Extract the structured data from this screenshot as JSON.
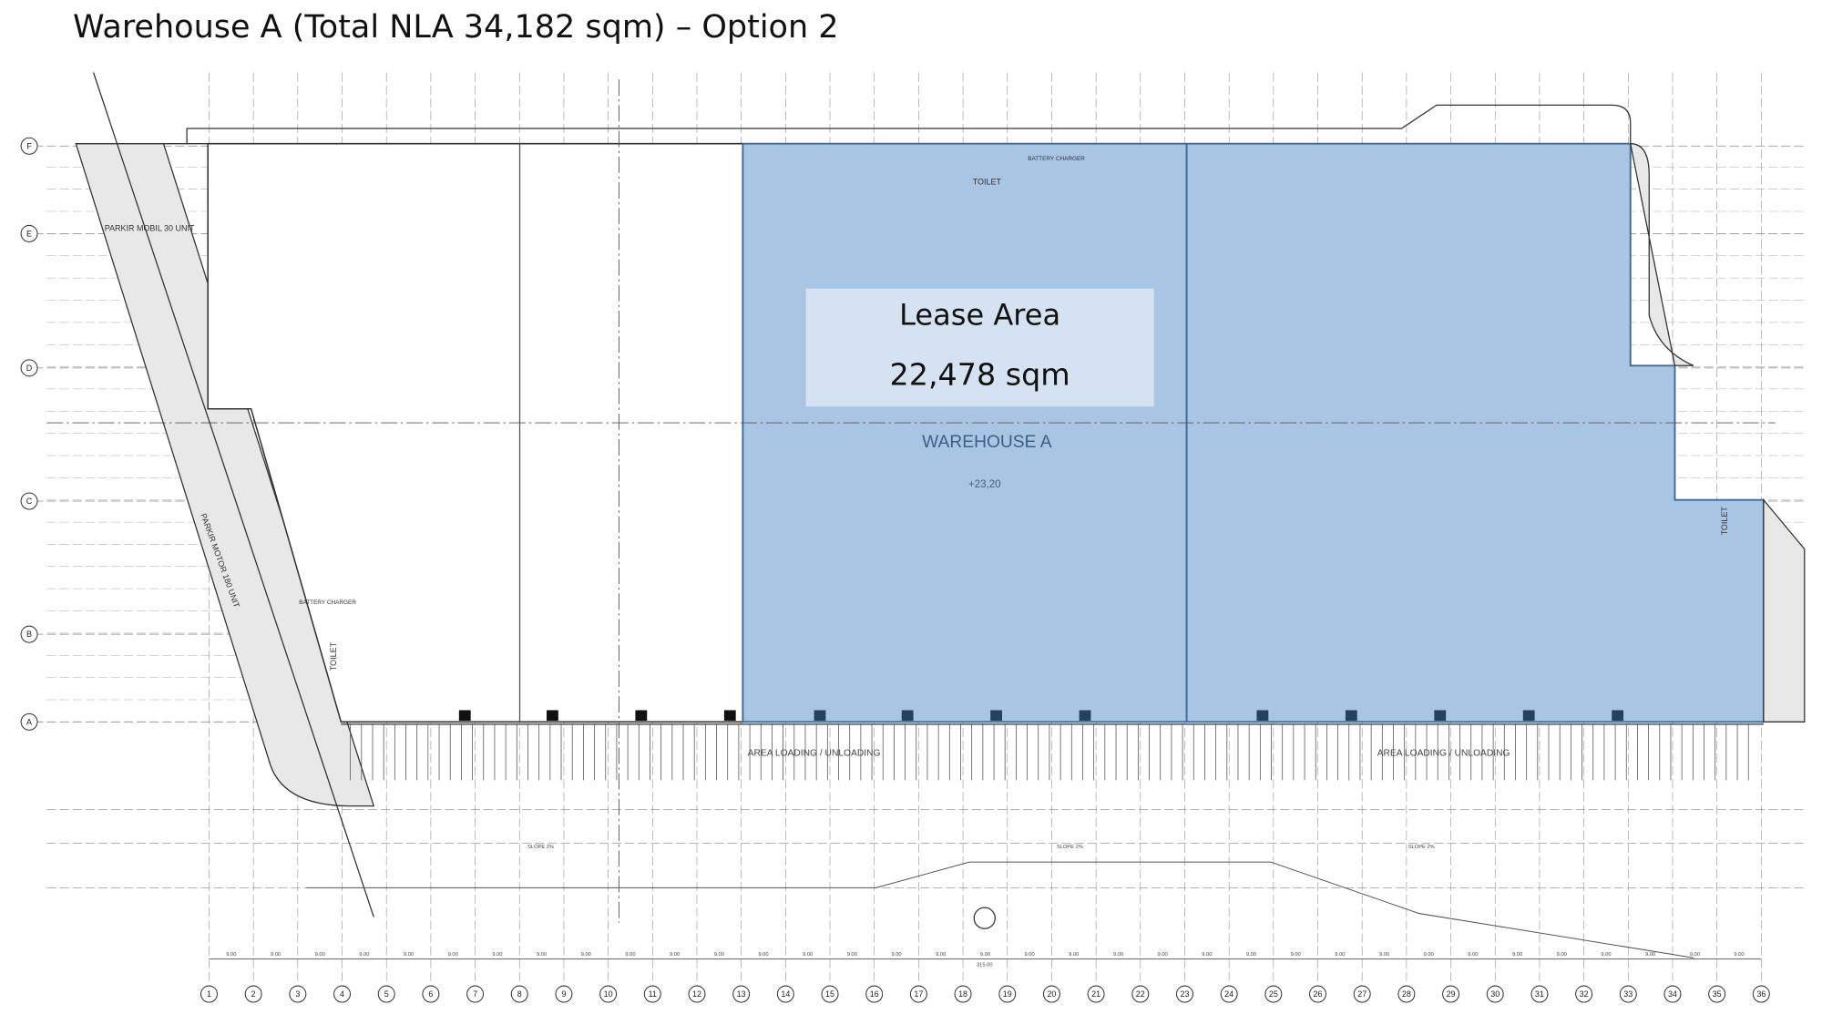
{
  "title": "Warehouse A (Total NLA 34,182 sqm) – Option 2",
  "lease_area": {
    "label": "Lease Area",
    "area": "22,478 sqm"
  },
  "labels": {
    "warehouse": "WAREHOUSE A",
    "level": "+23,20",
    "toilet": "TOILET",
    "battery": "BATTERY CHARGER",
    "parkir_mobil": "PARKIR MOBIL 30 UNIT",
    "parkir_motor": "PARKIR MOTOR 180 UNIT",
    "loading": "AREA LOADING / UNLOADING",
    "slope": "SLOPE 2%",
    "total": "315.00"
  },
  "dimensions": {
    "bay": "9.00"
  },
  "columns": [
    "1",
    "2",
    "3",
    "4",
    "5",
    "6",
    "7",
    "8",
    "9",
    "10",
    "11",
    "12",
    "13",
    "14",
    "15",
    "16",
    "17",
    "18",
    "19",
    "20",
    "21",
    "22",
    "23",
    "24",
    "25",
    "26",
    "27",
    "28",
    "29",
    "30",
    "31",
    "32",
    "33",
    "34",
    "35",
    "36"
  ],
  "rows": [
    "A",
    "B",
    "C",
    "D",
    "E",
    "F"
  ]
}
